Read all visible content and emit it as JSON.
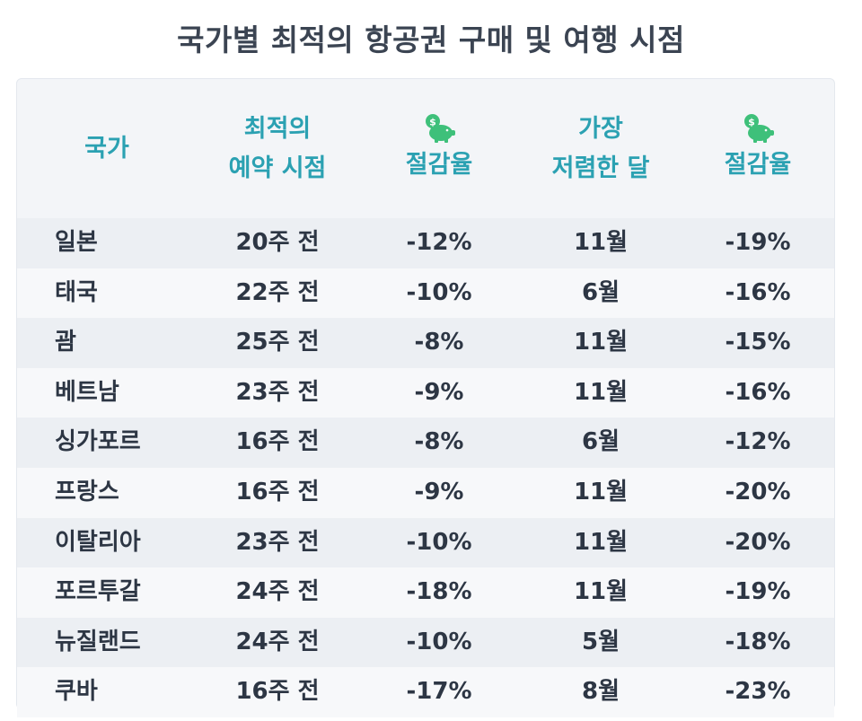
{
  "title": "국가별 최적의 항공권 구매 및 여행 시점",
  "colors": {
    "header_text": "#2ba1b2",
    "icon_green": "#3ec07a",
    "row_odd": "#eceff3",
    "row_even": "#f7f8fa"
  },
  "headers": {
    "country": "국가",
    "booking_line1": "최적의",
    "booking_line2": "예약 시점",
    "booking_savings": "절감율",
    "cheapest_line1": "가장",
    "cheapest_line2": "저렴한 달",
    "month_savings": "절감율",
    "savings_icon": "piggy-bank-coin-icon"
  },
  "rows": [
    {
      "country": "일본",
      "booking": "20주 전",
      "booking_savings": "-12%",
      "month": "11월",
      "month_savings": "-19%"
    },
    {
      "country": "태국",
      "booking": "22주 전",
      "booking_savings": "-10%",
      "month": "6월",
      "month_savings": "-16%"
    },
    {
      "country": "괌",
      "booking": "25주 전",
      "booking_savings": "-8%",
      "month": "11월",
      "month_savings": "-15%"
    },
    {
      "country": "베트남",
      "booking": "23주 전",
      "booking_savings": "-9%",
      "month": "11월",
      "month_savings": "-16%"
    },
    {
      "country": "싱가포르",
      "booking": "16주 전",
      "booking_savings": "-8%",
      "month": "6월",
      "month_savings": "-12%"
    },
    {
      "country": "프랑스",
      "booking": "16주 전",
      "booking_savings": "-9%",
      "month": "11월",
      "month_savings": "-20%"
    },
    {
      "country": "이탈리아",
      "booking": "23주 전",
      "booking_savings": "-10%",
      "month": "11월",
      "month_savings": "-20%"
    },
    {
      "country": "포르투갈",
      "booking": "24주 전",
      "booking_savings": "-18%",
      "month": "11월",
      "month_savings": "-19%"
    },
    {
      "country": "뉴질랜드",
      "booking": "24주 전",
      "booking_savings": "-10%",
      "month": "5월",
      "month_savings": "-18%"
    },
    {
      "country": "쿠바",
      "booking": "16주 전",
      "booking_savings": "-17%",
      "month": "8월",
      "month_savings": "-23%"
    }
  ]
}
